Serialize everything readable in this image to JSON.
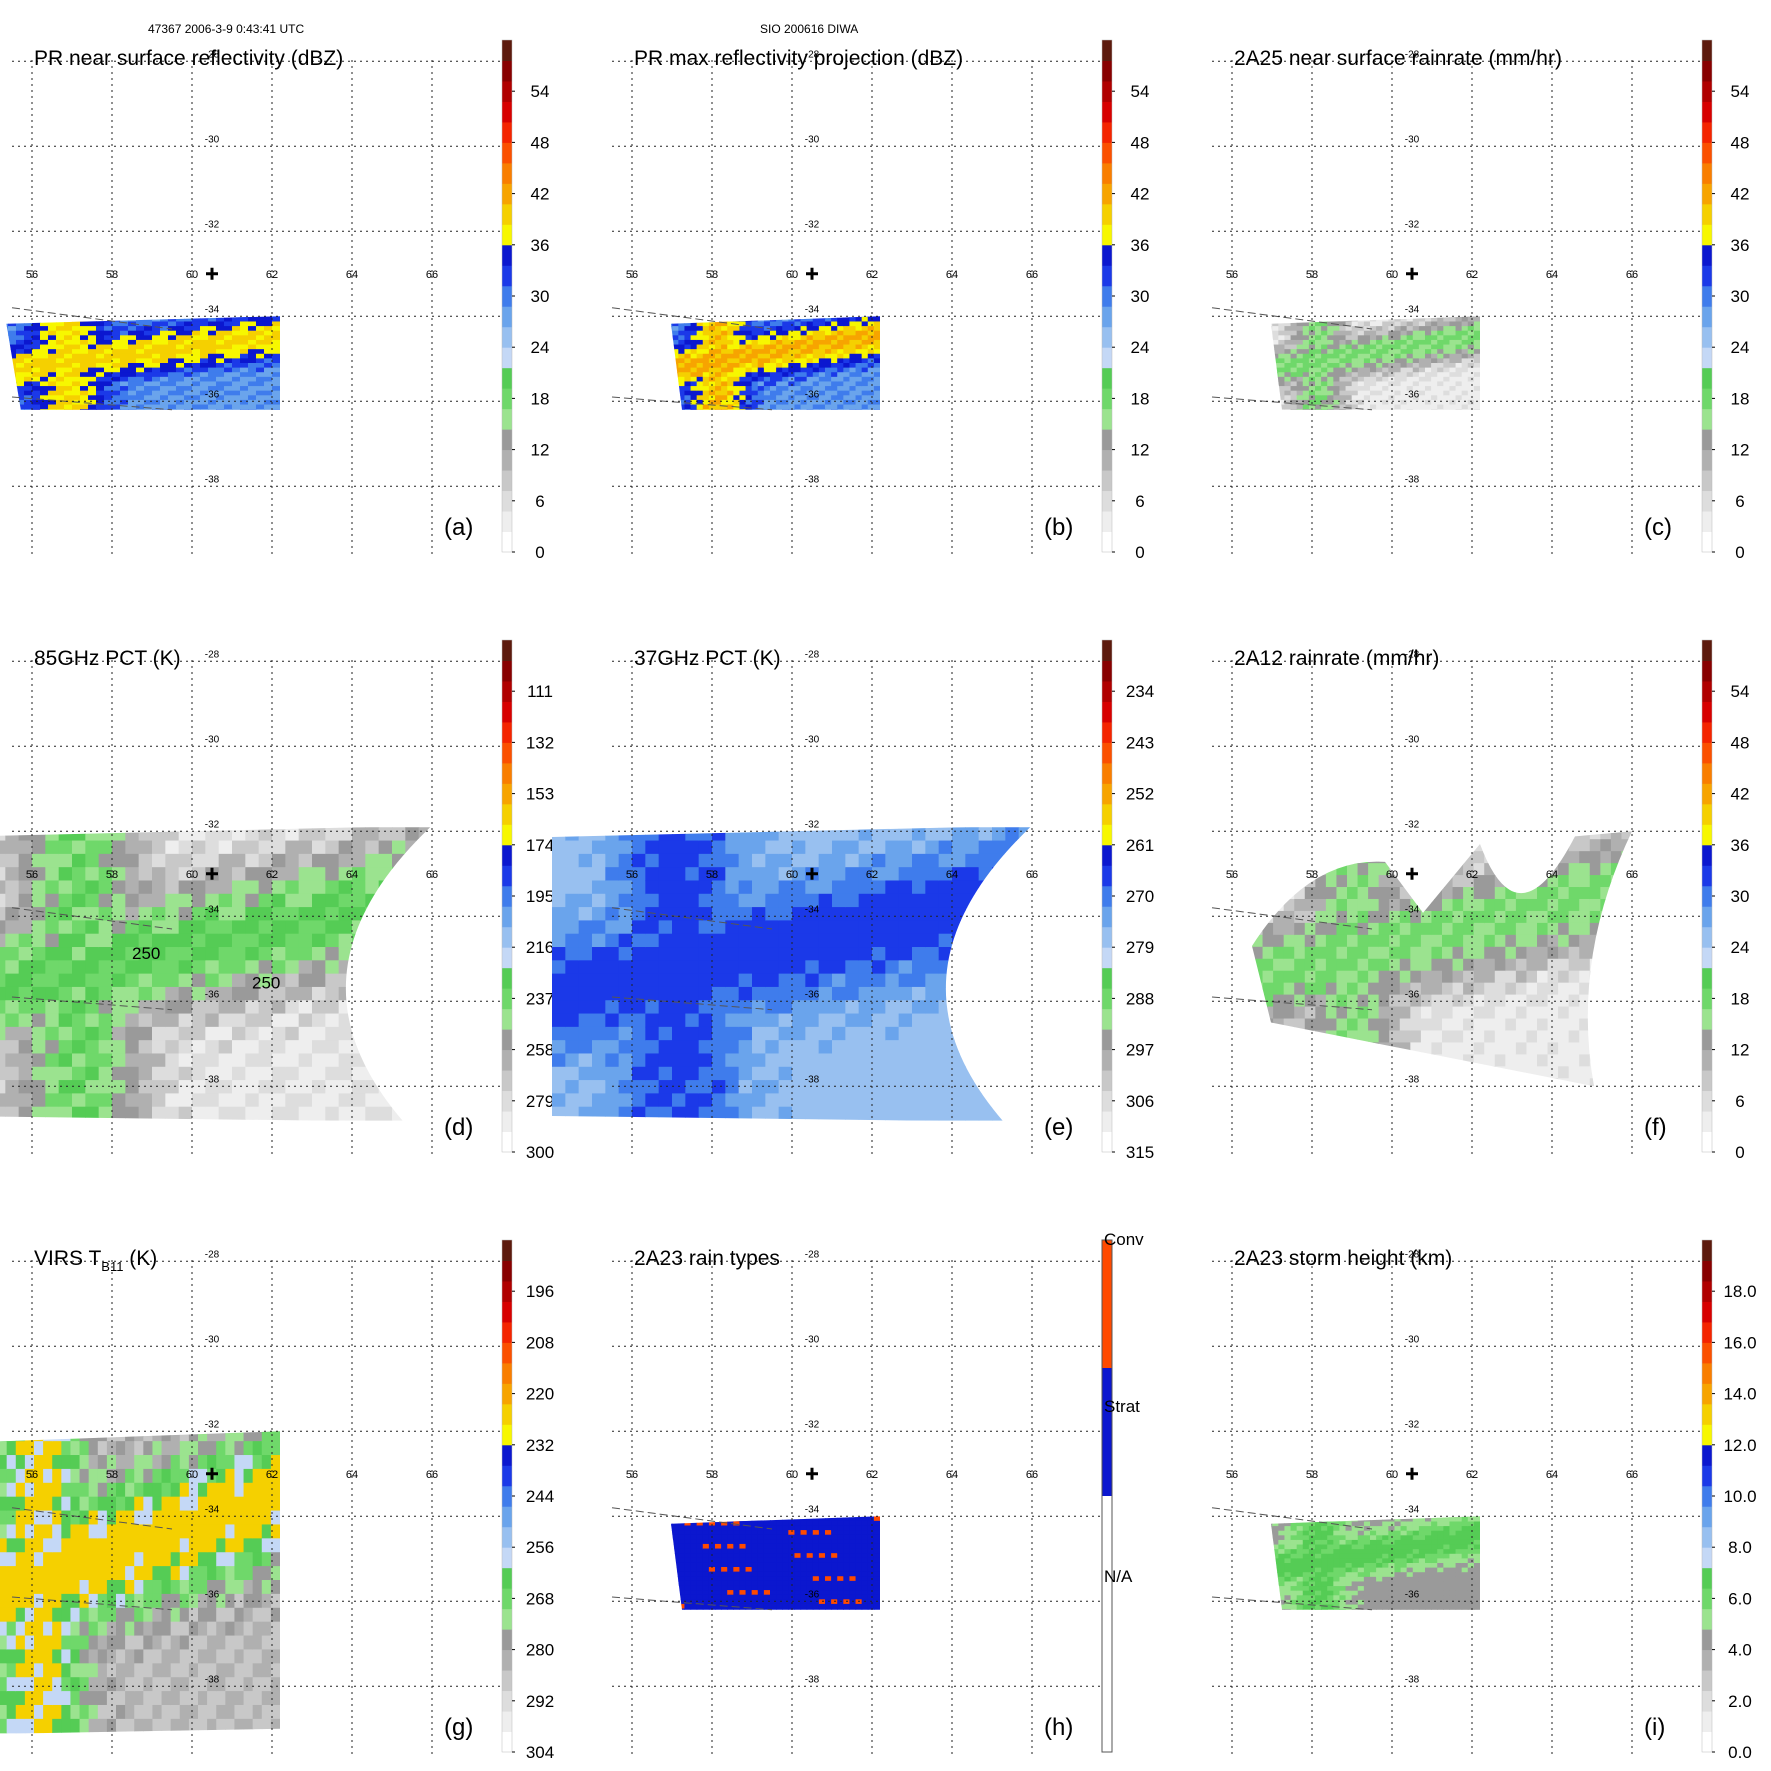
{
  "header": {
    "left": "47367 2006-3-9 0:43:41 UTC",
    "center": "SIO 200616 DIWA"
  },
  "grid": {
    "lon_ticks": [
      "56",
      "58",
      "60",
      "62",
      "64",
      "66"
    ],
    "lat_ticks": [
      "-28",
      "-30",
      "-32",
      "-34",
      "-36",
      "-38"
    ]
  },
  "colors": {
    "scale": [
      "#ffffff",
      "#eeeeee",
      "#dddddd",
      "#c8c8c8",
      "#b0b0b0",
      "#9a9a9a",
      "#9be38f",
      "#6fd86a",
      "#55cc55",
      "#c4d8f6",
      "#98c0f0",
      "#6aa4ec",
      "#3f7cec",
      "#1b39e8",
      "#0b17cf",
      "#f7f700",
      "#f5d000",
      "#f7a400",
      "#f97e00",
      "#fb5000",
      "#f42400",
      "#d70000",
      "#b00000",
      "#880000",
      "#5c1a0d"
    ],
    "rain_types": {
      "na": "#ffffff",
      "strat": "#0b17cf",
      "conv": "#ff4a00"
    }
  },
  "chart_data": [
    {
      "type": "heatmap",
      "id": "a",
      "title": "PR near surface reflectivity (dBZ)",
      "panel_label": "(a)",
      "colorbar_ticks": [
        "0",
        "6",
        "12",
        "18",
        "24",
        "30",
        "36",
        "42",
        "48",
        "54"
      ],
      "colorbar_range": [
        0,
        60
      ],
      "data_extent": {
        "lon": [
          55.0,
          62.2
        ],
        "lat": [
          -36.2,
          -34.0
        ]
      },
      "band_values": {
        "background": 28,
        "band": 40
      }
    },
    {
      "type": "heatmap",
      "id": "b",
      "title": "PR max reflectivity projection (dBZ)",
      "panel_label": "(b)",
      "colorbar_ticks": [
        "0",
        "6",
        "12",
        "18",
        "24",
        "30",
        "36",
        "42",
        "48",
        "54"
      ],
      "colorbar_range": [
        0,
        60
      ],
      "data_extent": {
        "lon": [
          56.7,
          62.2
        ],
        "lat": [
          -36.2,
          -34.0
        ]
      },
      "band_values": {
        "background": 28,
        "band": 42
      }
    },
    {
      "type": "heatmap",
      "id": "c",
      "title": "2A25 near surface rainrate (mm/hr)",
      "panel_label": "(c)",
      "colorbar_ticks": [
        "0",
        "6",
        "12",
        "18",
        "24",
        "30",
        "36",
        "42",
        "48",
        "54"
      ],
      "colorbar_range": [
        0,
        60
      ],
      "data_extent": {
        "lon": [
          56.7,
          62.2
        ],
        "lat": [
          -36.2,
          -34.0
        ]
      },
      "band_values": {
        "background": 3,
        "band": 18
      }
    },
    {
      "type": "heatmap",
      "id": "d",
      "title": "85GHz PCT (K)",
      "panel_label": "(d)",
      "colorbar_ticks": [
        "300",
        "279",
        "258",
        "237",
        "216",
        "195",
        "174",
        "153",
        "132",
        "111"
      ],
      "colorbar_range": [
        300,
        90
      ],
      "contour_labels": [
        "250",
        "250"
      ],
      "data_extent": {
        "lon": [
          54.0,
          66.0
        ],
        "lat": [
          -38.7,
          -32.0
        ]
      },
      "band_values": {
        "background": 285,
        "band": 230
      }
    },
    {
      "type": "heatmap",
      "id": "e",
      "title": "37GHz PCT (K)",
      "panel_label": "(e)",
      "colorbar_ticks": [
        "315",
        "306",
        "297",
        "288",
        "279",
        "270",
        "261",
        "252",
        "243",
        "234"
      ],
      "colorbar_range": [
        315,
        225
      ],
      "data_extent": {
        "lon": [
          54.0,
          66.0
        ],
        "lat": [
          -38.7,
          -32.0
        ]
      },
      "band_values": {
        "background": 278,
        "band": 265
      }
    },
    {
      "type": "heatmap",
      "id": "f",
      "title": "2A12 rainrate (mm/hr)",
      "panel_label": "(f)",
      "colorbar_ticks": [
        "0",
        "6",
        "12",
        "18",
        "24",
        "30",
        "36",
        "42",
        "48",
        "54"
      ],
      "colorbar_range": [
        0,
        60
      ],
      "data_extent": {
        "lon": [
          56.5,
          66.0
        ],
        "lat": [
          -38.0,
          -32.0
        ]
      },
      "band_values": {
        "background": 3,
        "band": 18
      }
    },
    {
      "type": "heatmap",
      "id": "g",
      "title": "VIRS T",
      "title_sub": "B11",
      "title_tail": " (K)",
      "panel_label": "(g)",
      "colorbar_ticks": [
        "304",
        "292",
        "280",
        "268",
        "256",
        "244",
        "232",
        "220",
        "208",
        "196"
      ],
      "colorbar_range": [
        304,
        184
      ],
      "data_extent": {
        "lon": [
          54.0,
          62.2
        ],
        "lat": [
          -39.0,
          -32.0
        ]
      },
      "band_values": {
        "background": 286,
        "band": 250,
        "core": 225
      }
    },
    {
      "type": "heatmap",
      "id": "h",
      "title": "2A23 rain types",
      "panel_label": "(h)",
      "legend": [
        "N/A",
        "Strat",
        "Conv"
      ],
      "data_extent": {
        "lon": [
          56.7,
          62.2
        ],
        "lat": [
          -36.2,
          -34.0
        ]
      }
    },
    {
      "type": "heatmap",
      "id": "i",
      "title": "2A23 storm height (km)",
      "panel_label": "(i)",
      "colorbar_ticks": [
        "0.0",
        "2.0",
        "4.0",
        "6.0",
        "8.0",
        "10.0",
        "12.0",
        "14.0",
        "16.0",
        "18.0"
      ],
      "colorbar_range": [
        0,
        20
      ],
      "data_extent": {
        "lon": [
          56.7,
          62.2
        ],
        "lat": [
          -36.2,
          -34.0
        ]
      },
      "band_values": {
        "background": 4,
        "band": 7
      }
    }
  ]
}
